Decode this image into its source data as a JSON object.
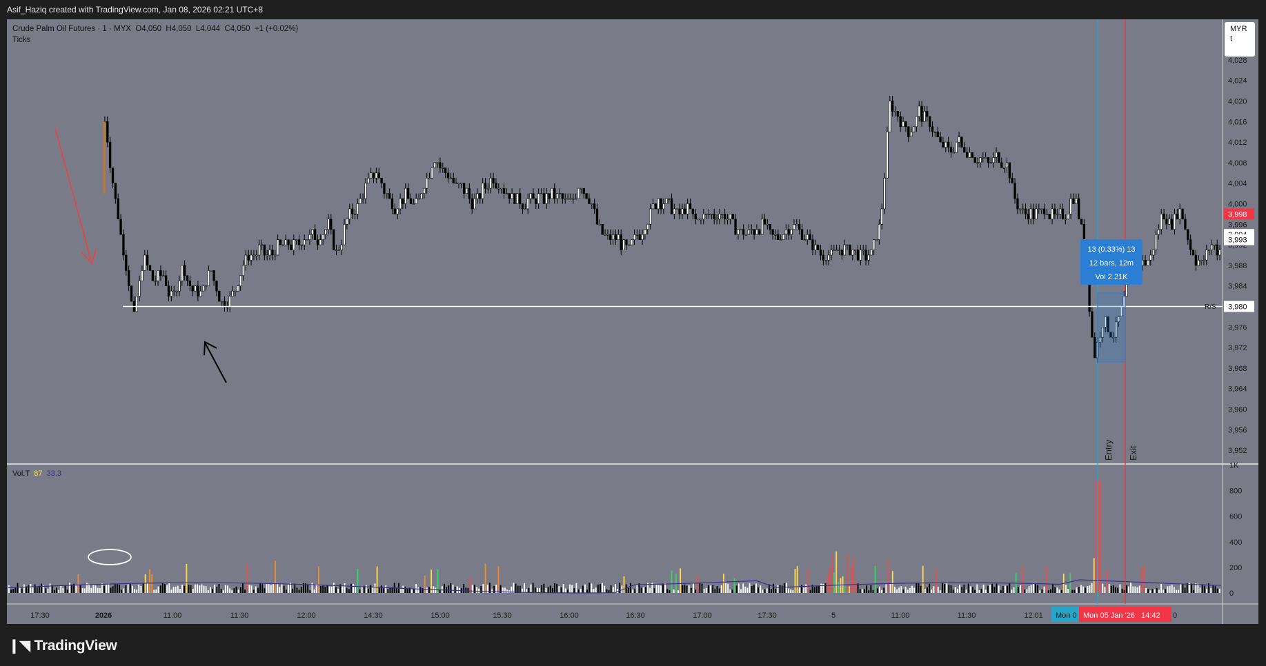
{
  "header": {
    "created_by": "Asif_Haziq created with TradingView.com, Jan 08, 2026 02:21 UTC+8"
  },
  "legend": {
    "symbol": "Crude Palm Oil Futures · 1 · MYX",
    "open": "O4,050",
    "high": "H4,050",
    "low": "L4,044",
    "close": "C4,050",
    "change": "+1 (+0.02%)",
    "chart_type": "Ticks"
  },
  "currency": {
    "line1": "MYR",
    "line2": "t"
  },
  "volume_legend": {
    "name": "Vol.T",
    "value": "87",
    "ma": "33.3"
  },
  "price_axis": {
    "ticks": [
      "4,028",
      "4,024",
      "4,020",
      "4,016",
      "4,012",
      "4,008",
      "4,004",
      "4,000",
      "3,996",
      "3,992",
      "3,988",
      "3,984",
      "3,980",
      "3,976",
      "3,972",
      "3,968",
      "3,964",
      "3,960",
      "3,956",
      "3,952"
    ],
    "badges": [
      {
        "label": "3,998",
        "color": "#f23645",
        "text_color": "#ffffff"
      },
      {
        "label": "3,994",
        "color": "#ffffff",
        "text_color": "#111111"
      },
      {
        "label": "3,993",
        "color": "#ffffff",
        "text_color": "#111111"
      },
      {
        "label": "3,980",
        "color": "#ffffff",
        "text_color": "#111111"
      }
    ],
    "rs_label": "R/S"
  },
  "volume_axis": {
    "ticks": [
      "1K",
      "800",
      "600",
      "400",
      "200",
      "0"
    ]
  },
  "time_axis": {
    "ticks": [
      "17:30",
      "2026",
      "11:00",
      "11:30",
      "12:00",
      "14:30",
      "15:00",
      "15:30",
      "16:00",
      "16:30",
      "17:00",
      "17:30",
      "5",
      "11:00",
      "11:30",
      "12:01"
    ],
    "entry_badge": "Mon 0",
    "exit_badge": "Mon 05 Jan '26   14:42",
    "trailing": "0"
  },
  "measure_tooltip": {
    "line1": "13 (0.33%) 13",
    "line2": "12 bars, 12m",
    "line3": "Vol 2.21K"
  },
  "markers": {
    "entry": "Entry",
    "exit": "Exit"
  },
  "colors": {
    "chart_bg": "#797c88",
    "candle": "#000000",
    "level_line": "#ffffff",
    "entry_line": "#26a6c9",
    "exit_line": "#f23645",
    "tooltip_bg": "#2a7fd4",
    "vol_ma": "#3a2f8f",
    "arrow_red": "#f04040",
    "arrow_black": "#000000"
  },
  "chart_data": {
    "type": "candlestick",
    "symbol": "Crude Palm Oil Futures",
    "exchange": "MYX",
    "interval": "1",
    "ylim": [
      3950,
      4030
    ],
    "horizontal_level": 3980,
    "price_path": [
      [
        0,
        4016
      ],
      [
        1,
        4002
      ],
      [
        2,
        3990
      ],
      [
        3,
        3978
      ],
      [
        4,
        3990
      ],
      [
        5,
        3985
      ],
      [
        6,
        3986
      ],
      [
        7,
        3981
      ],
      [
        8,
        3988
      ],
      [
        9,
        3983
      ],
      [
        10,
        3983
      ],
      [
        11,
        3987
      ],
      [
        12,
        3981
      ],
      [
        13,
        3981
      ],
      [
        14,
        3987
      ],
      [
        15,
        3990
      ],
      [
        16,
        3991
      ],
      [
        17,
        3990
      ],
      [
        18,
        3992
      ],
      [
        19,
        3992
      ],
      [
        20,
        3992
      ],
      [
        21,
        3994
      ],
      [
        22,
        3993
      ],
      [
        23,
        3996
      ],
      [
        24,
        3990
      ],
      [
        25,
        3997
      ],
      [
        26,
        3999
      ],
      [
        27,
        4004
      ],
      [
        28,
        4006
      ],
      [
        29,
        4002
      ],
      [
        30,
        3999
      ],
      [
        31,
        4002
      ],
      [
        32,
        3999
      ],
      [
        33,
        4004
      ],
      [
        34,
        4009
      ],
      [
        35,
        4006
      ],
      [
        36,
        4004
      ],
      [
        37,
        4003
      ],
      [
        38,
        4000
      ],
      [
        39,
        4003
      ],
      [
        40,
        4005
      ],
      [
        41,
        4003
      ],
      [
        42,
        4001
      ],
      [
        43,
        4000
      ],
      [
        44,
        4001
      ],
      [
        45,
        4001
      ],
      [
        46,
        4002
      ],
      [
        47,
        4001
      ],
      [
        48,
        4000
      ],
      [
        49,
        4004
      ],
      [
        50,
        4001
      ],
      [
        51,
        3995
      ],
      [
        52,
        3993
      ],
      [
        53,
        3993
      ],
      [
        54,
        3991
      ],
      [
        55,
        3994
      ],
      [
        56,
        3997
      ],
      [
        57,
        4001
      ],
      [
        58,
        4000
      ],
      [
        59,
        3998
      ],
      [
        60,
        3999
      ],
      [
        61,
        3997
      ],
      [
        62,
        3998
      ],
      [
        63,
        3998
      ],
      [
        64,
        3998
      ],
      [
        65,
        3995
      ],
      [
        66,
        3994
      ],
      [
        67,
        3995
      ],
      [
        68,
        3996
      ],
      [
        69,
        3993
      ],
      [
        70,
        3994
      ],
      [
        71,
        3996
      ],
      [
        72,
        3994
      ],
      [
        73,
        3992
      ],
      [
        74,
        3990
      ],
      [
        75,
        3990
      ],
      [
        76,
        3991
      ],
      [
        77,
        3991
      ],
      [
        78,
        3990
      ],
      [
        79,
        3990
      ],
      [
        80,
        3996
      ],
      [
        81,
        4020
      ],
      [
        82,
        4016
      ],
      [
        83,
        4014
      ],
      [
        84,
        4018
      ],
      [
        85,
        4016
      ],
      [
        86,
        4012
      ],
      [
        87,
        4010
      ],
      [
        88,
        4012
      ],
      [
        89,
        4010
      ],
      [
        90,
        4009
      ],
      [
        91,
        4008
      ],
      [
        92,
        4009
      ],
      [
        93,
        4008
      ],
      [
        94,
        4000
      ],
      [
        95,
        3998
      ],
      [
        96,
        3998
      ],
      [
        97,
        3999
      ],
      [
        98,
        3997
      ],
      [
        99,
        3998
      ],
      [
        100,
        4002
      ],
      [
        101,
        3993
      ],
      [
        102,
        3970
      ],
      [
        103,
        3978
      ],
      [
        104,
        3974
      ],
      [
        105,
        3980
      ],
      [
        106,
        3991
      ],
      [
        107,
        3988
      ],
      [
        108,
        3990
      ],
      [
        109,
        3998
      ],
      [
        110,
        3996
      ],
      [
        111,
        3999
      ],
      [
        112,
        3991
      ],
      [
        113,
        3988
      ],
      [
        114,
        3992
      ],
      [
        115,
        3991
      ]
    ],
    "volume_ma_approx": 33.3,
    "trade": {
      "entry_price": 3980,
      "exit_price": 3993,
      "change": 13,
      "change_pct": 0.33,
      "bars": 12,
      "minutes": 12,
      "volume": "2.21K"
    }
  }
}
